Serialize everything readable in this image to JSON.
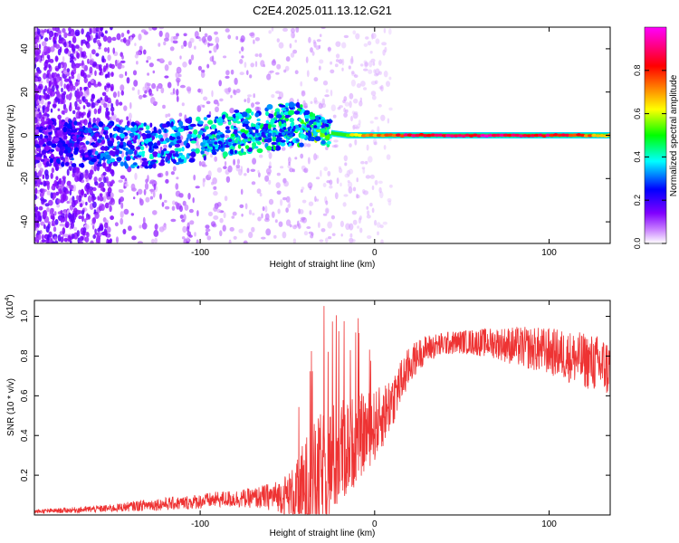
{
  "title": "C2E4.2025.011.13.12.G21",
  "chart_data": [
    {
      "type": "heatmap",
      "xlabel": "Height of straight line (km)",
      "ylabel": "Frequency (Hz)",
      "xlim": [
        -195,
        135
      ],
      "ylim": [
        -50,
        50
      ],
      "xticks": [
        -100,
        0,
        100
      ],
      "yticks": [
        -40,
        -20,
        0,
        20,
        40
      ],
      "colorbar": {
        "label": "Normalized spectral amplitude",
        "range": [
          0,
          1
        ],
        "ticks": [
          0.0,
          0.2,
          0.4,
          0.6,
          0.8
        ],
        "colors": [
          "#ffffff",
          "#8000ff",
          "#0000ff",
          "#00ffff",
          "#00ff00",
          "#ffff00",
          "#ff8000",
          "#ff0000",
          "#ff00ff"
        ]
      },
      "ridge": {
        "x": [
          -190,
          -170,
          -150,
          -130,
          -110,
          -90,
          -70,
          -55,
          -40,
          -33,
          -25,
          -15,
          0,
          20,
          60,
          100,
          135
        ],
        "freq": [
          -3,
          -4,
          -4,
          -5,
          -3,
          0,
          2,
          4,
          5,
          3,
          1,
          0,
          0,
          0,
          0,
          0,
          0
        ],
        "amplitude": [
          0.2,
          0.25,
          0.3,
          0.35,
          0.35,
          0.4,
          0.4,
          0.4,
          0.45,
          0.5,
          0.5,
          0.6,
          0.7,
          0.85,
          0.9,
          0.85,
          0.65
        ]
      }
    },
    {
      "type": "line",
      "color": "#ee3333",
      "xlabel": "Height of straight line (km)",
      "ylabel": "SNR (10 * v/v)",
      "multiplier_label": "(x10",
      "multiplier_exp": "4",
      "xlim": [
        -195,
        135
      ],
      "ylim": [
        0,
        1.08
      ],
      "xticks": [
        -100,
        0,
        100
      ],
      "yticks": [
        0.2,
        0.4,
        0.6,
        0.8,
        1.0
      ],
      "series": [
        {
          "x": [
            -195,
            -170,
            -150,
            -130,
            -110,
            -90,
            -70,
            -55,
            -45,
            -40,
            -35,
            -30,
            -25,
            -20,
            -15,
            -10,
            -5,
            0,
            5,
            10,
            15,
            20,
            25,
            30,
            40,
            50,
            60,
            70,
            80,
            90,
            100,
            110,
            120,
            130,
            135
          ],
          "y": [
            0.02,
            0.03,
            0.04,
            0.06,
            0.07,
            0.09,
            0.1,
            0.12,
            0.15,
            0.2,
            0.25,
            0.3,
            0.35,
            0.4,
            0.42,
            0.45,
            0.48,
            0.5,
            0.55,
            0.62,
            0.7,
            0.78,
            0.83,
            0.86,
            0.88,
            0.89,
            0.89,
            0.89,
            0.88,
            0.87,
            0.86,
            0.84,
            0.82,
            0.8,
            0.78
          ],
          "noise": [
            0.01,
            0.015,
            0.02,
            0.03,
            0.035,
            0.04,
            0.05,
            0.08,
            0.15,
            0.28,
            0.3,
            0.32,
            0.3,
            0.28,
            0.25,
            0.22,
            0.2,
            0.18,
            0.16,
            0.14,
            0.12,
            0.1,
            0.08,
            0.07,
            0.06,
            0.06,
            0.07,
            0.08,
            0.1,
            0.11,
            0.12,
            0.13,
            0.14,
            0.15,
            0.15
          ]
        }
      ]
    }
  ]
}
